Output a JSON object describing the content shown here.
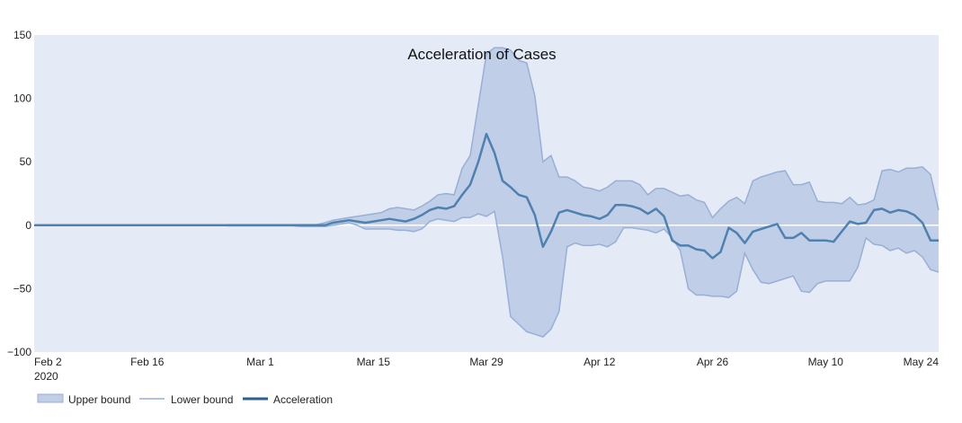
{
  "chart_data": {
    "type": "area",
    "title": "Acceleration of Cases",
    "xlabel": "",
    "ylabel": "",
    "ylim": [
      -100,
      150
    ],
    "yticks": [
      -100,
      -50,
      0,
      50,
      100,
      150
    ],
    "ytick_labels": [
      "−100",
      "−50",
      "0",
      "50",
      "100",
      "150"
    ],
    "x_start": "2020-02-02",
    "x_end": "2020-05-24",
    "xticks": [
      "2020-02-02",
      "2020-02-16",
      "2020-03-01",
      "2020-03-15",
      "2020-03-29",
      "2020-04-12",
      "2020-04-26",
      "2020-05-10",
      "2020-05-24"
    ],
    "xtick_labels": [
      "Feb 2",
      "Feb 16",
      "Mar 1",
      "Mar 15",
      "Mar 29",
      "Apr 12",
      "Apr 26",
      "May 10",
      "May 24"
    ],
    "xtick_sublabel": "2020",
    "grid": false,
    "legend_position": "bottom-left",
    "colors": {
      "plot_bg": "#e4ebf6",
      "band_fill": "#c0cee8",
      "band_line": "#98afd6",
      "accel_line": "#4f81b0",
      "zero_line": "#ffffff",
      "legend_accel": "#2c5f8f"
    },
    "legend": [
      "Upper bound",
      "Lower bound",
      "Acceleration"
    ],
    "series": [
      {
        "name": "Upper bound",
        "values": [
          [
            "2020-02-02",
            0
          ],
          [
            "2020-02-25",
            0
          ],
          [
            "2020-02-26",
            0.5
          ],
          [
            "2020-03-08",
            0.5
          ],
          [
            "2020-03-09",
            2
          ],
          [
            "2020-03-10",
            4
          ],
          [
            "2020-03-11",
            5
          ],
          [
            "2020-03-12",
            6
          ],
          [
            "2020-03-13",
            7
          ],
          [
            "2020-03-14",
            8
          ],
          [
            "2020-03-15",
            9
          ],
          [
            "2020-03-16",
            10
          ],
          [
            "2020-03-17",
            13
          ],
          [
            "2020-03-18",
            14
          ],
          [
            "2020-03-19",
            13
          ],
          [
            "2020-03-20",
            12
          ],
          [
            "2020-03-21",
            15
          ],
          [
            "2020-03-22",
            19
          ],
          [
            "2020-03-23",
            24
          ],
          [
            "2020-03-24",
            25
          ],
          [
            "2020-03-25",
            24
          ],
          [
            "2020-03-26",
            45
          ],
          [
            "2020-03-27",
            55
          ],
          [
            "2020-03-28",
            95
          ],
          [
            "2020-03-29",
            135
          ],
          [
            "2020-03-30",
            140
          ],
          [
            "2020-03-31",
            140
          ],
          [
            "2020-04-01",
            138
          ],
          [
            "2020-04-02",
            130
          ],
          [
            "2020-04-03",
            128
          ],
          [
            "2020-04-04",
            102
          ],
          [
            "2020-04-05",
            50
          ],
          [
            "2020-04-06",
            55
          ],
          [
            "2020-04-07",
            38
          ],
          [
            "2020-04-08",
            38
          ],
          [
            "2020-04-09",
            35
          ],
          [
            "2020-04-10",
            30
          ],
          [
            "2020-04-11",
            29
          ],
          [
            "2020-04-12",
            27
          ],
          [
            "2020-04-13",
            30
          ],
          [
            "2020-04-14",
            35
          ],
          [
            "2020-04-15",
            35
          ],
          [
            "2020-04-16",
            35
          ],
          [
            "2020-04-17",
            32
          ],
          [
            "2020-04-18",
            24
          ],
          [
            "2020-04-19",
            29
          ],
          [
            "2020-04-20",
            29
          ],
          [
            "2020-04-21",
            26
          ],
          [
            "2020-04-22",
            23
          ],
          [
            "2020-04-23",
            24
          ],
          [
            "2020-04-24",
            20
          ],
          [
            "2020-04-25",
            18
          ],
          [
            "2020-04-26",
            6
          ],
          [
            "2020-04-27",
            13
          ],
          [
            "2020-04-28",
            19
          ],
          [
            "2020-04-29",
            22
          ],
          [
            "2020-04-30",
            17
          ],
          [
            "2020-05-01",
            35
          ],
          [
            "2020-05-02",
            38
          ],
          [
            "2020-05-03",
            40
          ],
          [
            "2020-05-04",
            42
          ],
          [
            "2020-05-05",
            43
          ],
          [
            "2020-05-06",
            32
          ],
          [
            "2020-05-07",
            32
          ],
          [
            "2020-05-08",
            34
          ],
          [
            "2020-05-09",
            19
          ],
          [
            "2020-05-10",
            18
          ],
          [
            "2020-05-11",
            18
          ],
          [
            "2020-05-12",
            17
          ],
          [
            "2020-05-13",
            22
          ],
          [
            "2020-05-14",
            16
          ],
          [
            "2020-05-15",
            17
          ],
          [
            "2020-05-16",
            20
          ],
          [
            "2020-05-17",
            43
          ],
          [
            "2020-05-18",
            44
          ],
          [
            "2020-05-19",
            42
          ],
          [
            "2020-05-20",
            45
          ],
          [
            "2020-05-21",
            45
          ],
          [
            "2020-05-22",
            46
          ],
          [
            "2020-05-23",
            40
          ],
          [
            "2020-05-24",
            12
          ]
        ]
      },
      {
        "name": "Lower bound",
        "values": [
          [
            "2020-02-02",
            0
          ],
          [
            "2020-02-25",
            0
          ],
          [
            "2020-02-26",
            -0.5
          ],
          [
            "2020-03-05",
            -0.5
          ],
          [
            "2020-03-06",
            -1
          ],
          [
            "2020-03-09",
            -1
          ],
          [
            "2020-03-10",
            0
          ],
          [
            "2020-03-11",
            1
          ],
          [
            "2020-03-12",
            2
          ],
          [
            "2020-03-13",
            0
          ],
          [
            "2020-03-14",
            -3
          ],
          [
            "2020-03-15",
            -3
          ],
          [
            "2020-03-16",
            -3
          ],
          [
            "2020-03-17",
            -3
          ],
          [
            "2020-03-18",
            -4
          ],
          [
            "2020-03-19",
            -4
          ],
          [
            "2020-03-20",
            -5
          ],
          [
            "2020-03-21",
            -3
          ],
          [
            "2020-03-22",
            3
          ],
          [
            "2020-03-23",
            5
          ],
          [
            "2020-03-24",
            4
          ],
          [
            "2020-03-25",
            3
          ],
          [
            "2020-03-26",
            6
          ],
          [
            "2020-03-27",
            6
          ],
          [
            "2020-03-28",
            9
          ],
          [
            "2020-03-29",
            7
          ],
          [
            "2020-03-30",
            11
          ],
          [
            "2020-03-31",
            -25
          ],
          [
            "2020-04-01",
            -72
          ],
          [
            "2020-04-02",
            -78
          ],
          [
            "2020-04-03",
            -84
          ],
          [
            "2020-04-04",
            -86
          ],
          [
            "2020-04-05",
            -88
          ],
          [
            "2020-04-06",
            -82
          ],
          [
            "2020-04-07",
            -68
          ],
          [
            "2020-04-08",
            -17
          ],
          [
            "2020-04-09",
            -14
          ],
          [
            "2020-04-10",
            -16
          ],
          [
            "2020-04-11",
            -16
          ],
          [
            "2020-04-12",
            -15
          ],
          [
            "2020-04-13",
            -17
          ],
          [
            "2020-04-14",
            -13
          ],
          [
            "2020-04-15",
            -2
          ],
          [
            "2020-04-16",
            -2
          ],
          [
            "2020-04-17",
            -3
          ],
          [
            "2020-04-18",
            -4
          ],
          [
            "2020-04-19",
            -6
          ],
          [
            "2020-04-20",
            -3
          ],
          [
            "2020-04-21",
            -10
          ],
          [
            "2020-04-22",
            -20
          ],
          [
            "2020-04-23",
            -50
          ],
          [
            "2020-04-24",
            -55
          ],
          [
            "2020-04-25",
            -55
          ],
          [
            "2020-04-26",
            -56
          ],
          [
            "2020-04-27",
            -56
          ],
          [
            "2020-04-28",
            -57
          ],
          [
            "2020-04-29",
            -52
          ],
          [
            "2020-04-30",
            -22
          ],
          [
            "2020-05-01",
            -35
          ],
          [
            "2020-05-02",
            -45
          ],
          [
            "2020-05-03",
            -46
          ],
          [
            "2020-05-04",
            -44
          ],
          [
            "2020-05-05",
            -42
          ],
          [
            "2020-05-06",
            -40
          ],
          [
            "2020-05-07",
            -52
          ],
          [
            "2020-05-08",
            -53
          ],
          [
            "2020-05-09",
            -46
          ],
          [
            "2020-05-10",
            -44
          ],
          [
            "2020-05-11",
            -44
          ],
          [
            "2020-05-12",
            -44
          ],
          [
            "2020-05-13",
            -44
          ],
          [
            "2020-05-14",
            -33
          ],
          [
            "2020-05-15",
            -10
          ],
          [
            "2020-05-16",
            -15
          ],
          [
            "2020-05-17",
            -16
          ],
          [
            "2020-05-18",
            -20
          ],
          [
            "2020-05-19",
            -18
          ],
          [
            "2020-05-20",
            -22
          ],
          [
            "2020-05-21",
            -20
          ],
          [
            "2020-05-22",
            -25
          ],
          [
            "2020-05-23",
            -35
          ],
          [
            "2020-05-24",
            -37
          ]
        ]
      },
      {
        "name": "Acceleration",
        "values": [
          [
            "2020-02-02",
            0
          ],
          [
            "2020-03-09",
            0
          ],
          [
            "2020-03-10",
            2
          ],
          [
            "2020-03-11",
            3
          ],
          [
            "2020-03-12",
            4
          ],
          [
            "2020-03-13",
            3
          ],
          [
            "2020-03-14",
            2
          ],
          [
            "2020-03-15",
            3
          ],
          [
            "2020-03-16",
            4
          ],
          [
            "2020-03-17",
            5
          ],
          [
            "2020-03-18",
            4
          ],
          [
            "2020-03-19",
            3
          ],
          [
            "2020-03-20",
            5
          ],
          [
            "2020-03-21",
            8
          ],
          [
            "2020-03-22",
            12
          ],
          [
            "2020-03-23",
            14
          ],
          [
            "2020-03-24",
            13
          ],
          [
            "2020-03-25",
            15
          ],
          [
            "2020-03-26",
            24
          ],
          [
            "2020-03-27",
            32
          ],
          [
            "2020-03-28",
            50
          ],
          [
            "2020-03-29",
            72
          ],
          [
            "2020-03-30",
            57
          ],
          [
            "2020-03-31",
            35
          ],
          [
            "2020-04-01",
            30
          ],
          [
            "2020-04-02",
            24
          ],
          [
            "2020-04-03",
            22
          ],
          [
            "2020-04-04",
            8
          ],
          [
            "2020-04-05",
            -17
          ],
          [
            "2020-04-06",
            -5
          ],
          [
            "2020-04-07",
            10
          ],
          [
            "2020-04-08",
            12
          ],
          [
            "2020-04-09",
            10
          ],
          [
            "2020-04-10",
            8
          ],
          [
            "2020-04-11",
            7
          ],
          [
            "2020-04-12",
            5
          ],
          [
            "2020-04-13",
            8
          ],
          [
            "2020-04-14",
            16
          ],
          [
            "2020-04-15",
            16
          ],
          [
            "2020-04-16",
            15
          ],
          [
            "2020-04-17",
            13
          ],
          [
            "2020-04-18",
            9
          ],
          [
            "2020-04-19",
            13
          ],
          [
            "2020-04-20",
            7
          ],
          [
            "2020-04-21",
            -12
          ],
          [
            "2020-04-22",
            -16
          ],
          [
            "2020-04-23",
            -16
          ],
          [
            "2020-04-24",
            -19
          ],
          [
            "2020-04-25",
            -20
          ],
          [
            "2020-04-26",
            -26
          ],
          [
            "2020-04-27",
            -21
          ],
          [
            "2020-04-28",
            -2
          ],
          [
            "2020-04-29",
            -6
          ],
          [
            "2020-04-30",
            -14
          ],
          [
            "2020-05-01",
            -5
          ],
          [
            "2020-05-02",
            -3
          ],
          [
            "2020-05-03",
            -1
          ],
          [
            "2020-05-04",
            1
          ],
          [
            "2020-05-05",
            -10
          ],
          [
            "2020-05-06",
            -10
          ],
          [
            "2020-05-07",
            -6
          ],
          [
            "2020-05-08",
            -12
          ],
          [
            "2020-05-09",
            -12
          ],
          [
            "2020-05-10",
            -12
          ],
          [
            "2020-05-11",
            -13
          ],
          [
            "2020-05-12",
            -5
          ],
          [
            "2020-05-13",
            3
          ],
          [
            "2020-05-14",
            1
          ],
          [
            "2020-05-15",
            2
          ],
          [
            "2020-05-16",
            12
          ],
          [
            "2020-05-17",
            13
          ],
          [
            "2020-05-18",
            10
          ],
          [
            "2020-05-19",
            12
          ],
          [
            "2020-05-20",
            11
          ],
          [
            "2020-05-21",
            8
          ],
          [
            "2020-05-22",
            2
          ],
          [
            "2020-05-23",
            -12
          ],
          [
            "2020-05-24",
            -12
          ]
        ]
      }
    ]
  }
}
